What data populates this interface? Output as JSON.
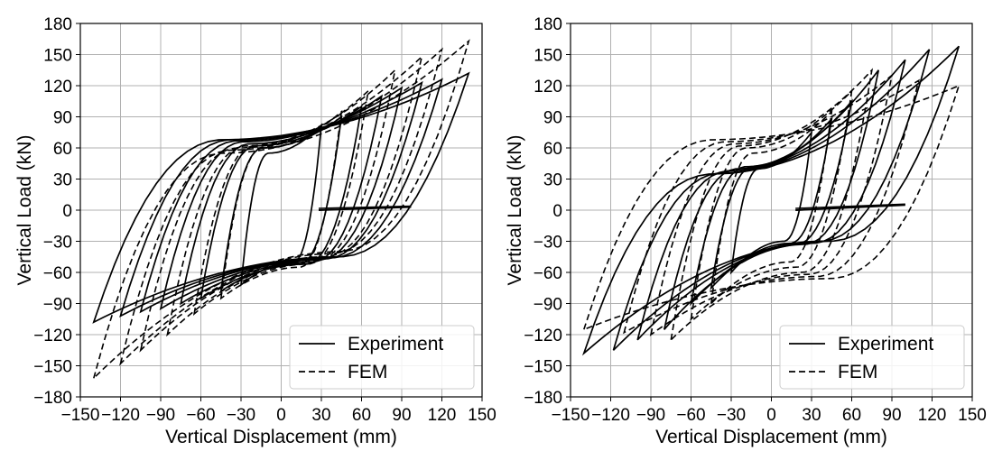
{
  "chart_data": [
    {
      "type": "line",
      "title": "",
      "xlabel": "Vertical Displacement (mm)",
      "ylabel": "Vertical Load (kN)",
      "xlim": [
        -150,
        150
      ],
      "ylim": [
        -180,
        180
      ],
      "xticks": [
        -150,
        -120,
        -90,
        -60,
        -30,
        0,
        30,
        60,
        90,
        120,
        150
      ],
      "yticks": [
        -180,
        -150,
        -120,
        -90,
        -60,
        -30,
        0,
        30,
        60,
        90,
        120,
        150,
        180
      ],
      "xtick_labels": [
        "−150",
        "−120",
        "−90",
        "−60",
        "−30",
        "0",
        "30",
        "60",
        "90",
        "120",
        "150"
      ],
      "ytick_labels": [
        "−180",
        "−150",
        "−120",
        "−90",
        "−60",
        "−30",
        "0",
        "30",
        "60",
        "90",
        "120",
        "150",
        "180"
      ],
      "grid": true,
      "legend": {
        "placement": "bottom-right",
        "entries": [
          "Experiment",
          "FEM"
        ]
      },
      "series": [
        {
          "name": "Experiment",
          "style": "solid",
          "loops": [
            {
              "amp_pos": 30,
              "amp_neg": -30,
              "load_pos": 82,
              "load_neg": -72,
              "plateau_pos": 55,
              "plateau_neg": -50
            },
            {
              "amp_pos": 45,
              "amp_neg": -45,
              "load_pos": 90,
              "load_neg": -78,
              "plateau_pos": 60,
              "plateau_neg": -52
            },
            {
              "amp_pos": 60,
              "amp_neg": -60,
              "load_pos": 100,
              "load_neg": -85,
              "plateau_pos": 62,
              "plateau_neg": -52
            },
            {
              "amp_pos": 75,
              "amp_neg": -75,
              "load_pos": 110,
              "load_neg": -90,
              "plateau_pos": 64,
              "plateau_neg": -50
            },
            {
              "amp_pos": 90,
              "amp_neg": -90,
              "load_pos": 118,
              "load_neg": -95,
              "plateau_pos": 66,
              "plateau_neg": -48
            },
            {
              "amp_pos": 105,
              "amp_neg": -105,
              "load_pos": 123,
              "load_neg": -98,
              "plateau_pos": 67,
              "plateau_neg": -47
            },
            {
              "amp_pos": 120,
              "amp_neg": -120,
              "load_pos": 126,
              "load_neg": -102,
              "plateau_pos": 68,
              "plateau_neg": -46
            },
            {
              "amp_pos": 140,
              "amp_neg": -140,
              "load_pos": 132,
              "load_neg": -108,
              "plateau_pos": 68,
              "plateau_neg": -45
            }
          ],
          "unload_segment": {
            "x": [
              28,
              97
            ],
            "y": [
              0,
              3
            ]
          }
        },
        {
          "name": "FEM",
          "style": "dashed",
          "loops": [
            {
              "amp_pos": 45,
              "amp_neg": -45,
              "load_pos": 95,
              "load_neg": -85,
              "plateau_pos": 60,
              "plateau_neg": -55
            },
            {
              "amp_pos": 65,
              "amp_neg": -65,
              "load_pos": 115,
              "load_neg": -100,
              "plateau_pos": 62,
              "plateau_neg": -52
            },
            {
              "amp_pos": 85,
              "amp_neg": -85,
              "load_pos": 135,
              "load_neg": -120,
              "plateau_pos": 62,
              "plateau_neg": -48
            },
            {
              "amp_pos": 105,
              "amp_neg": -105,
              "load_pos": 148,
              "load_neg": -135,
              "plateau_pos": 60,
              "plateau_neg": -45
            },
            {
              "amp_pos": 120,
              "amp_neg": -120,
              "load_pos": 155,
              "load_neg": -148,
              "plateau_pos": 58,
              "plateau_neg": -42
            },
            {
              "amp_pos": 140,
              "amp_neg": -140,
              "load_pos": 163,
              "load_neg": -162,
              "plateau_pos": 55,
              "plateau_neg": -40
            }
          ]
        }
      ]
    },
    {
      "type": "line",
      "title": "",
      "xlabel": "Vertical Displacement (mm)",
      "ylabel": "Vertical Load (kN)",
      "xlim": [
        -150,
        150
      ],
      "ylim": [
        -180,
        180
      ],
      "xticks": [
        -150,
        -120,
        -90,
        -60,
        -30,
        0,
        30,
        60,
        90,
        120,
        150
      ],
      "yticks": [
        -180,
        -150,
        -120,
        -90,
        -60,
        -30,
        0,
        30,
        60,
        90,
        120,
        150,
        180
      ],
      "xtick_labels": [
        "−150",
        "−120",
        "−90",
        "−60",
        "−30",
        "0",
        "30",
        "60",
        "90",
        "120",
        "150"
      ],
      "ytick_labels": [
        "−180",
        "−150",
        "−120",
        "−90",
        "−60",
        "−30",
        "0",
        "30",
        "60",
        "90",
        "120",
        "150",
        "180"
      ],
      "grid": true,
      "legend": {
        "placement": "bottom-right",
        "entries": [
          "Experiment",
          "FEM"
        ]
      },
      "series": [
        {
          "name": "Experiment",
          "style": "solid",
          "loops": [
            {
              "amp_pos": 30,
              "amp_neg": -30,
              "load_pos": 75,
              "load_neg": -60,
              "plateau_pos": 40,
              "plateau_neg": -30
            },
            {
              "amp_pos": 45,
              "amp_neg": -45,
              "load_pos": 88,
              "load_neg": -75,
              "plateau_pos": 42,
              "plateau_neg": -32
            },
            {
              "amp_pos": 60,
              "amp_neg": -60,
              "load_pos": 105,
              "load_neg": -90,
              "plateau_pos": 42,
              "plateau_neg": -33
            },
            {
              "amp_pos": 80,
              "amp_neg": -80,
              "load_pos": 135,
              "load_neg": -115,
              "plateau_pos": 40,
              "plateau_neg": -33
            },
            {
              "amp_pos": 100,
              "amp_neg": -100,
              "load_pos": 145,
              "load_neg": -125,
              "plateau_pos": 38,
              "plateau_neg": -32
            },
            {
              "amp_pos": 118,
              "amp_neg": -118,
              "load_pos": 155,
              "load_neg": -135,
              "plateau_pos": 36,
              "plateau_neg": -30
            },
            {
              "amp_pos": 140,
              "amp_neg": -140,
              "load_pos": 158,
              "load_neg": -138,
              "plateau_pos": 35,
              "plateau_neg": -30
            }
          ],
          "unload_segment": {
            "x": [
              18,
              100
            ],
            "y": [
              0,
              5
            ]
          }
        },
        {
          "name": "FEM",
          "style": "dashed",
          "loops": [
            {
              "amp_pos": 45,
              "amp_neg": -45,
              "load_pos": 95,
              "load_neg": -90,
              "plateau_pos": 55,
              "plateau_neg": -50
            },
            {
              "amp_pos": 60,
              "amp_neg": -60,
              "load_pos": 115,
              "load_neg": -105,
              "plateau_pos": 60,
              "plateau_neg": -55
            },
            {
              "amp_pos": 75,
              "amp_neg": -75,
              "load_pos": 135,
              "load_neg": -125,
              "plateau_pos": 62,
              "plateau_neg": -60
            },
            {
              "amp_pos": 90,
              "amp_neg": -90,
              "load_pos": 130,
              "load_neg": -120,
              "plateau_pos": 64,
              "plateau_neg": -62
            },
            {
              "amp_pos": 110,
              "amp_neg": -110,
              "load_pos": 125,
              "load_neg": -118,
              "plateau_pos": 66,
              "plateau_neg": -64
            },
            {
              "amp_pos": 140,
              "amp_neg": -140,
              "load_pos": 120,
              "load_neg": -115,
              "plateau_pos": 68,
              "plateau_neg": -66
            }
          ]
        }
      ]
    }
  ]
}
